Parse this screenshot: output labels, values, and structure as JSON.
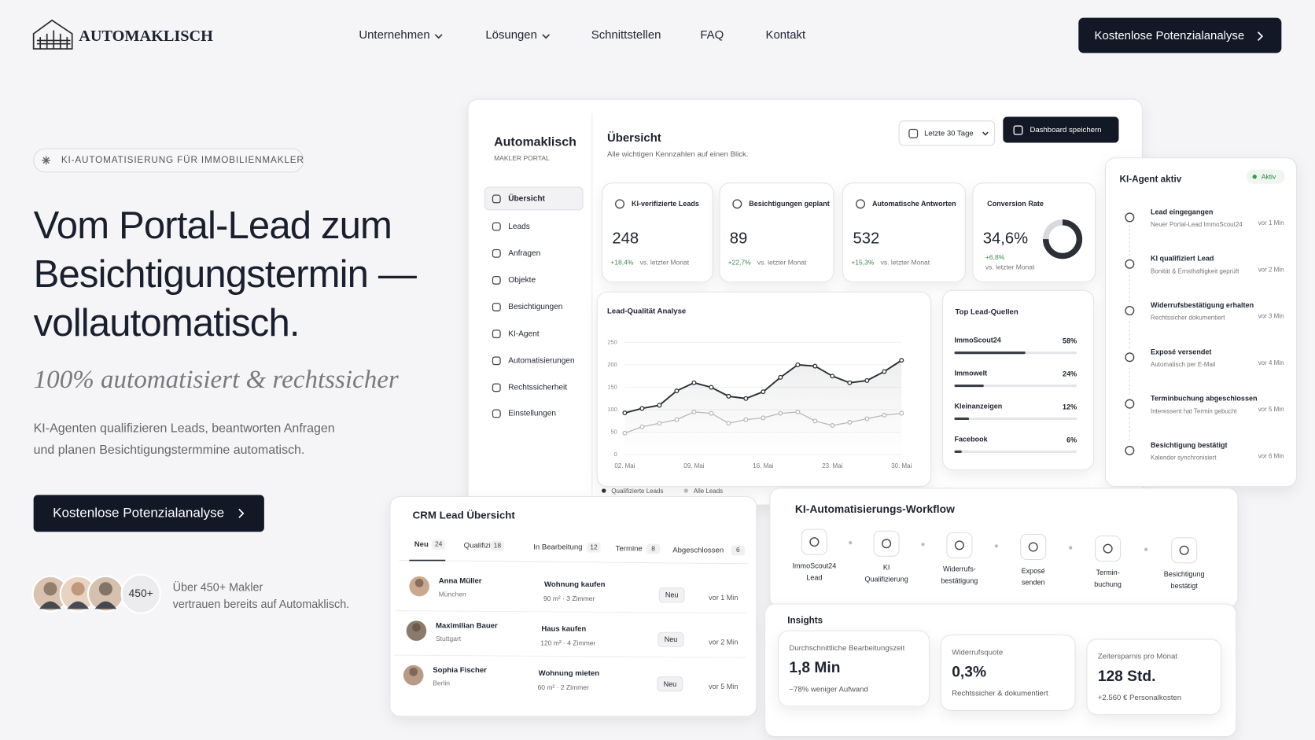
{
  "header": {
    "logo": "AUTOMAKLISCH",
    "nav": [
      "Unternehmen",
      "Lösungen",
      "Schnittstellen",
      "FAQ",
      "Kontakt"
    ],
    "cta": "Kostenlose Potenzialanalyse"
  },
  "hero": {
    "badge": "KI-AUTOMATISIERUNG FÜR IMMOBILIENMAKLER",
    "title": [
      "Vom Portal-Lead zum",
      "Besichtigungstermin —",
      "vollautomatisch."
    ],
    "tagline": "100% automatisiert & rechtssicher",
    "description": [
      "KI-Agenten qualifizieren Leads, beantworten Anfragen",
      "und planen Besichtigungstermmine automatisch."
    ],
    "cta": "Kostenlose Potenzialanalyse",
    "avatar_count": "450+",
    "social_proof": [
      "Über 450+ Makler",
      "vertrauen bereits auf Automaklisch."
    ]
  },
  "dashboard": {
    "brand": "Automaklisch",
    "brand_sub": "MAKLER PORTAL",
    "nav": [
      "Übersicht",
      "Leads",
      "Anfragen",
      "Objekte",
      "Besichtigungen",
      "KI-Agent",
      "Automatisierungen",
      "Rechtssicherheit",
      "Einstellungen"
    ],
    "title": "Übersicht",
    "subtitle": "Alle wichtigen Kennzahlen auf einen Blick.",
    "date_filter": "Letzte 30 Tage",
    "save": "Dashboard speichern",
    "kpis": [
      {
        "label": "KI-verifizierte Leads",
        "value": "248",
        "change": "+18,4%",
        "note": "vs. letzter Monat"
      },
      {
        "label": "Besichtigungen geplant",
        "value": "89",
        "change": "+22,7%",
        "note": "vs. letzter Monat"
      },
      {
        "label": "Automatische Antworten",
        "value": "532",
        "change": "+15,3%",
        "note": "vs. letzter Monat"
      },
      {
        "label": "Conversion Rate",
        "value": "34,6%",
        "change": "+6,8%",
        "note": "vs. letzter Monat"
      }
    ],
    "chart": {
      "type": "line",
      "title": "Lead-Qualität Analyse",
      "categories": [
        "02. Mai",
        null,
        null,
        null,
        "09. Mai",
        null,
        null,
        null,
        "16. Mai",
        null,
        null,
        null,
        "23. Mai",
        null,
        null,
        null,
        "30. Mai"
      ],
      "series": [
        {
          "name": "Qualifizierte Leads",
          "color": "#2b2f36",
          "values": [
            93,
            103,
            110,
            142,
            160,
            150,
            130,
            125,
            140,
            172,
            200,
            197,
            175,
            160,
            165,
            185,
            210
          ]
        },
        {
          "name": "Alle Leads",
          "color": "#b8b8bc",
          "values": [
            48,
            62,
            70,
            78,
            95,
            92,
            70,
            78,
            82,
            92,
            95,
            75,
            65,
            72,
            80,
            88,
            92
          ]
        }
      ],
      "ylim": [
        0,
        250
      ],
      "yticks": [
        0,
        50,
        100,
        150,
        200,
        250
      ]
    },
    "sources": {
      "title": "Top Lead-Quellen",
      "items": [
        {
          "name": "ImmoScout24",
          "value": 58,
          "label": "58%"
        },
        {
          "name": "Immowelt",
          "value": 24,
          "label": "24%"
        },
        {
          "name": "Kleinanzeigen",
          "value": 12,
          "label": "12%"
        },
        {
          "name": "Facebook",
          "value": 6,
          "label": "6%"
        }
      ]
    }
  },
  "agent": {
    "title": "KI-Agent aktiv",
    "status": "Aktiv",
    "events": [
      {
        "title": "Lead eingegangen",
        "detail": "Neuer Portal-Lead ImmoScout24",
        "time": "vor 1 Min"
      },
      {
        "title": "KI qualifiziert Lead",
        "detail": "Bonität & Ernsthaftigkeit geprüft",
        "time": "vor 2 Min"
      },
      {
        "title": "Widerrufsbestätigung erhalten",
        "detail": "Rechtssicher dokumentiert",
        "time": "vor 3 Min"
      },
      {
        "title": "Exposé versendet",
        "detail": "Automatisch per E-Mail",
        "time": "vor 4 Min"
      },
      {
        "title": "Terminbuchung abgeschlossen",
        "detail": "Interessent hat Termin gebucht",
        "time": "vor 5 Min"
      },
      {
        "title": "Besichtigung bestätigt",
        "detail": "Kalender synchronisiert",
        "time": "vor 6 Min"
      }
    ]
  },
  "crm": {
    "title": "CRM Lead Übersicht",
    "tabs": [
      {
        "label": "Neu",
        "count": "24"
      },
      {
        "label": "Qualifiziert",
        "count": "18"
      },
      {
        "label": "In Bearbeitung",
        "count": "12"
      },
      {
        "label": "Termine",
        "count": "8"
      },
      {
        "label": "Abgeschlossen",
        "count": "6"
      }
    ],
    "leads": [
      {
        "name": "Anna Müller",
        "city": "München",
        "type": "Wohnung kaufen",
        "details": "90 m²  ·  3 Zimmer",
        "status": "Neu",
        "time": "vor 1 Min"
      },
      {
        "name": "Maximilian Bauer",
        "city": "Stuttgart",
        "type": "Haus kaufen",
        "details": "120 m²  ·  4 Zimmer",
        "status": "Neu",
        "time": "vor 2 Min"
      },
      {
        "name": "Sophia Fischer",
        "city": "Berlin",
        "type": "Wohnung mieten",
        "details": "60 m²  ·  2 Zimmer",
        "status": "Neu",
        "time": "vor 5 Min"
      }
    ]
  },
  "workflow": {
    "title": "KI-Automatisierungs-Workflow",
    "steps": [
      [
        "ImmoScout24",
        "Lead"
      ],
      [
        "KI",
        "Qualifizierung"
      ],
      [
        "Widerrufs-",
        "bestätigung"
      ],
      [
        "Exposé",
        "senden"
      ],
      [
        "Termin-",
        "buchung"
      ],
      [
        "Besichtigung",
        "bestätigt"
      ]
    ]
  },
  "insights": {
    "title": "Insights",
    "cards": [
      {
        "label": "Durchschnittliche Bearbeitungszeit",
        "value": "1,8 Min",
        "note": "−78% weniger Aufwand"
      },
      {
        "label": "Widerrufsquote",
        "value": "0,3%",
        "note": "Rechtssicher & dokumentiert"
      },
      {
        "label": "Zeitersparnis pro Monat",
        "value": "128 Std.",
        "note": "+2.560 € Personalkosten"
      }
    ]
  }
}
